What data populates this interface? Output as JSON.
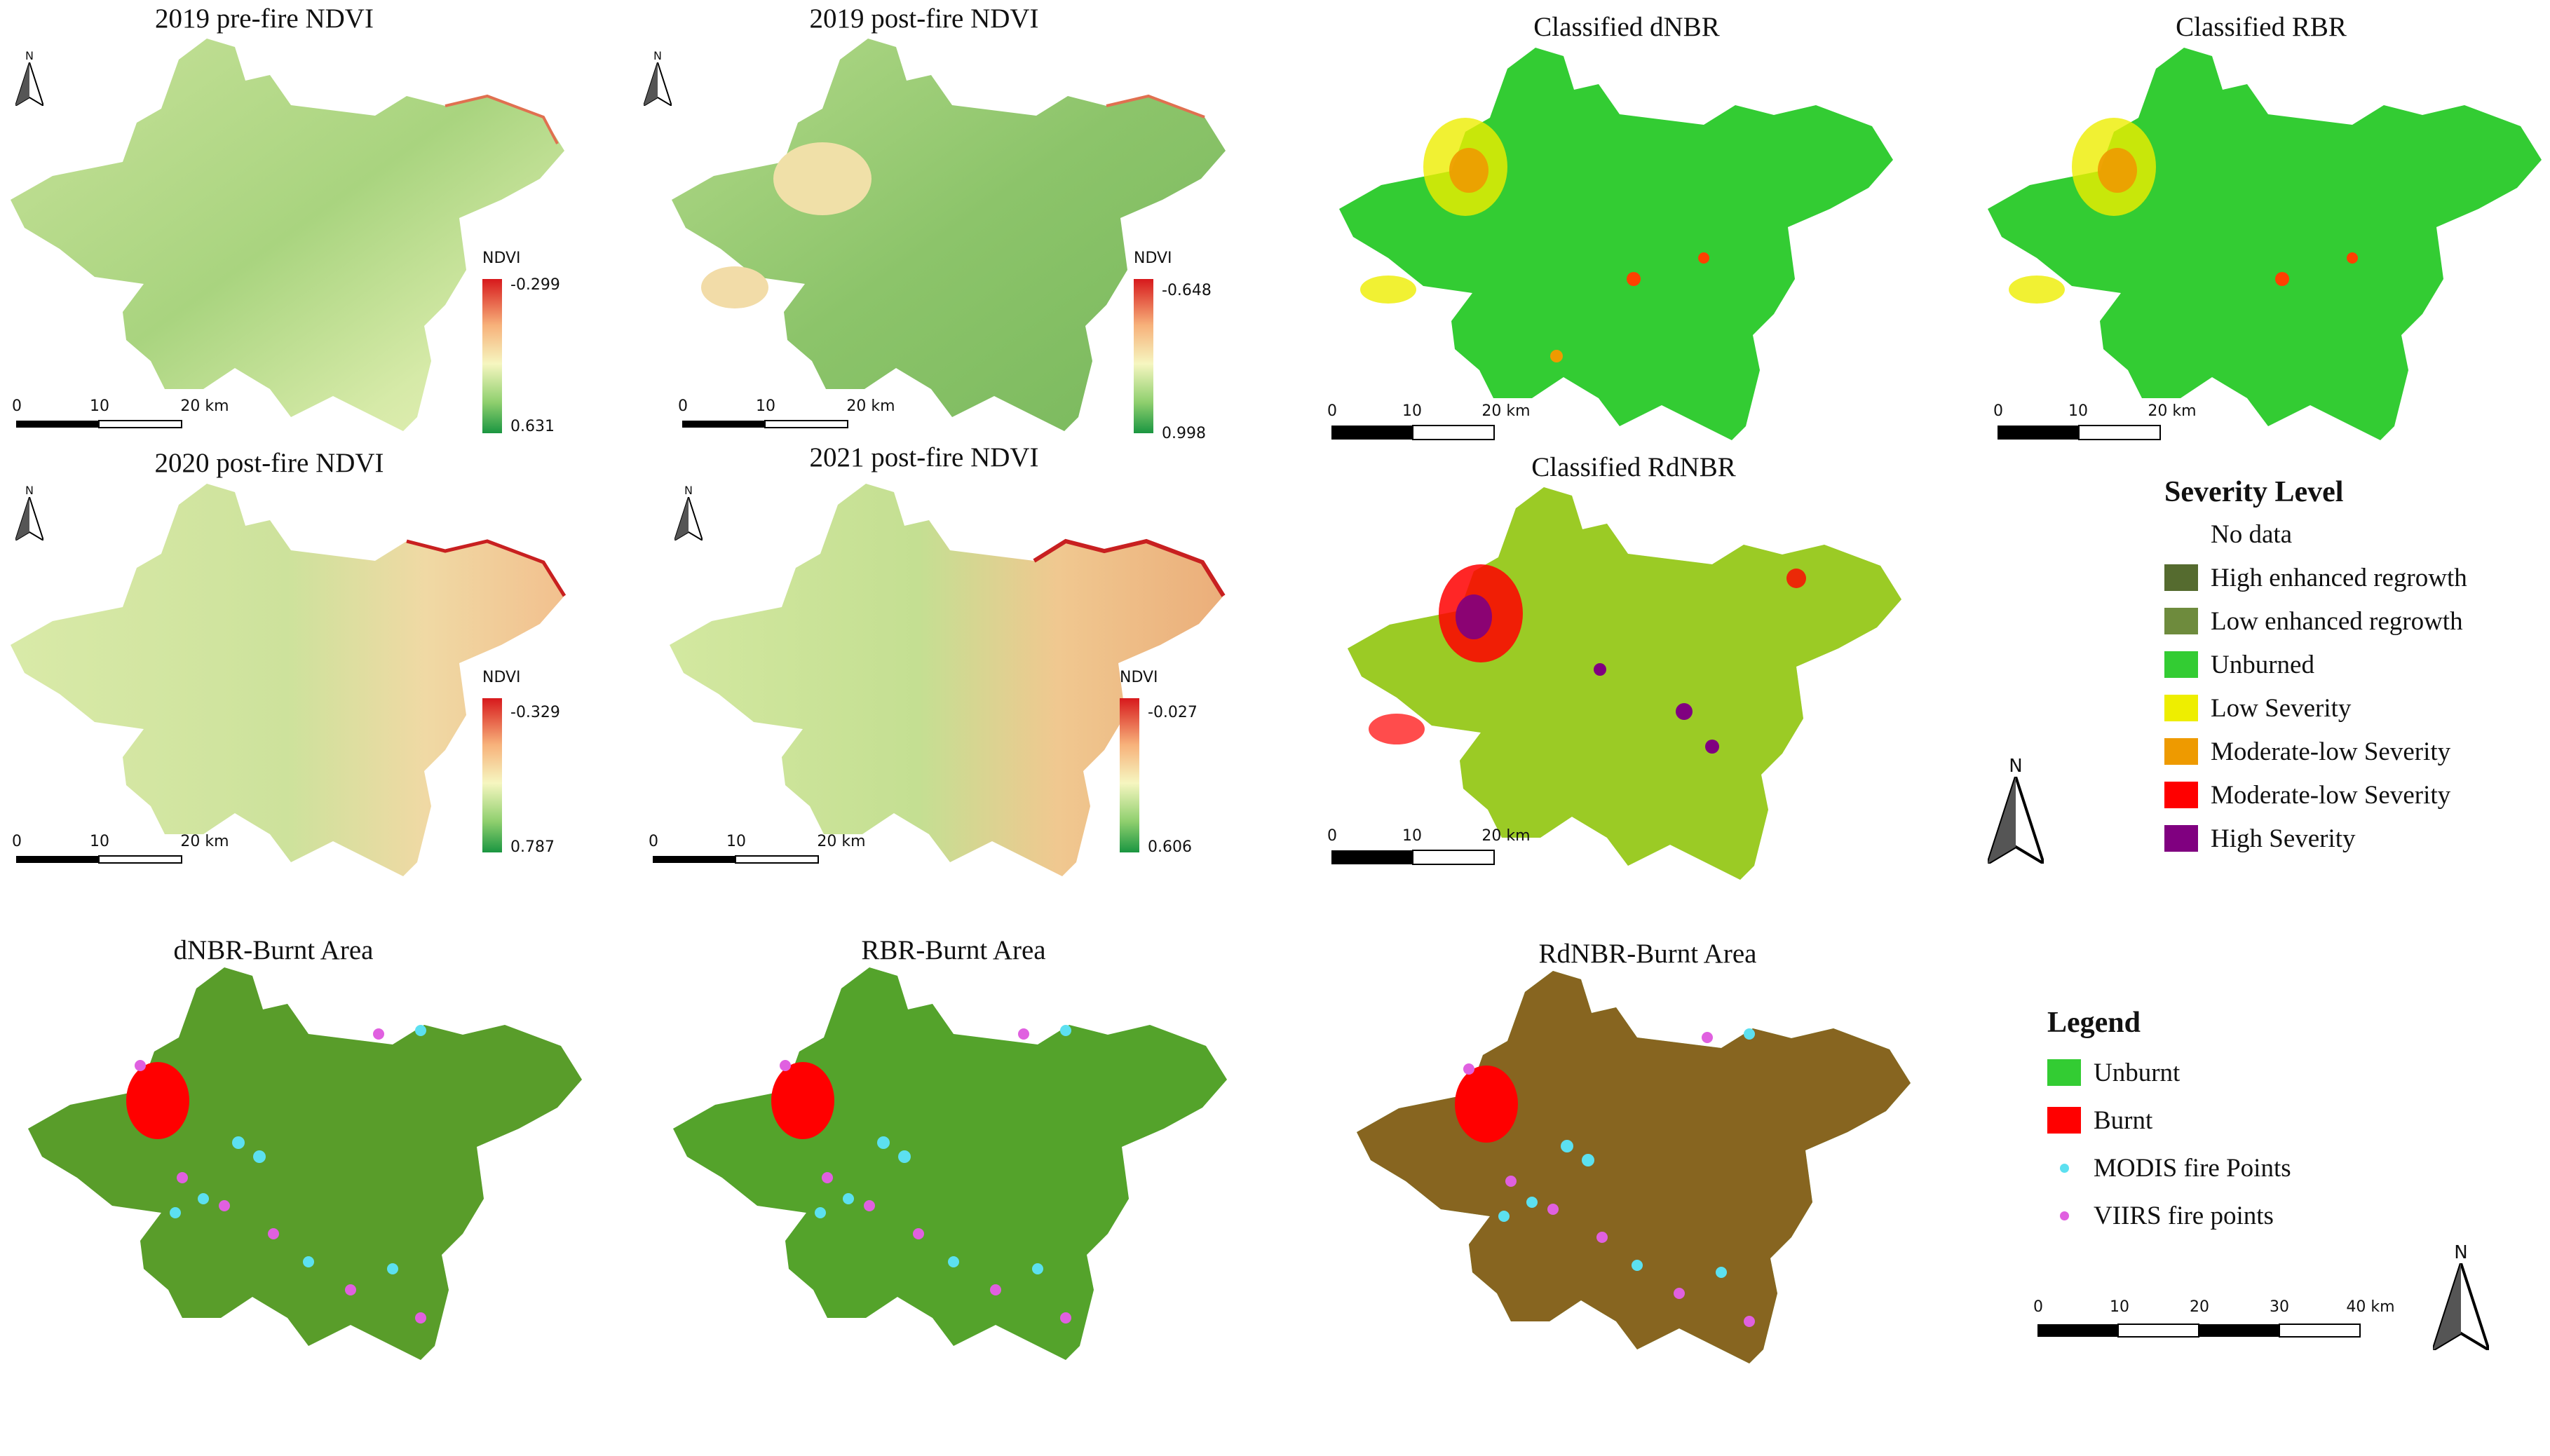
{
  "ndvi_panels": [
    {
      "title": "2019 pre-fire NDVI",
      "legend_title": "NDVI",
      "max": "-0.299",
      "min": "0.631",
      "scale": [
        "0",
        "10",
        "20 km"
      ]
    },
    {
      "title": "2019 post-fire NDVI",
      "legend_title": "NDVI",
      "max": "-0.648",
      "min": "0.998",
      "scale": [
        "0",
        "10",
        "20 km"
      ]
    },
    {
      "title": "2020 post-fire NDVI",
      "legend_title": "NDVI",
      "max": "-0.329",
      "min": "0.787",
      "scale": [
        "0",
        "10",
        "20 km"
      ]
    },
    {
      "title": "2021 post-fire NDVI",
      "legend_title": "NDVI",
      "max": "-0.027",
      "min": "0.606",
      "scale": [
        "0",
        "10",
        "20 km"
      ]
    }
  ],
  "classified_panels": [
    {
      "title": "Classified dNBR",
      "scale": [
        "0",
        "10",
        "20 km"
      ]
    },
    {
      "title": "Classified RBR",
      "scale": [
        "0",
        "10",
        "20 km"
      ]
    },
    {
      "title": "Classified RdNBR",
      "scale": [
        "0",
        "10",
        "20 km"
      ]
    }
  ],
  "burnt_panels": [
    {
      "title": "dNBR-Burnt Area"
    },
    {
      "title": "RBR-Burnt Area"
    },
    {
      "title": "RdNBR-Burnt Area"
    }
  ],
  "north_label": "N",
  "severity_legend": {
    "title": "Severity Level",
    "items": [
      {
        "label": "No data",
        "color": "#ffffff"
      },
      {
        "label": "High enhanced regrowth",
        "color": "#556b2f"
      },
      {
        "label": "Low enhanced regrowth",
        "color": "#6e8b3d"
      },
      {
        "label": "Unburned",
        "color": "#33cc33"
      },
      {
        "label": "Low Severity",
        "color": "#eeee00"
      },
      {
        "label": "Moderate-low Severity",
        "color": "#ee9a00"
      },
      {
        "label": "Moderate-low Severity",
        "color": "#ff0000"
      },
      {
        "label": "High Severity",
        "color": "#800080"
      }
    ]
  },
  "burn_legend": {
    "title": "Legend",
    "items": [
      {
        "label": "Unburnt",
        "color": "#33cc33",
        "kind": "box"
      },
      {
        "label": "Burnt",
        "color": "#ff0000",
        "kind": "box"
      },
      {
        "label": "MODIS fire Points",
        "color": "#5ce0f0",
        "kind": "dot"
      },
      {
        "label": "VIIRS fire points",
        "color": "#e060e0",
        "kind": "dot"
      }
    ]
  },
  "main_scale": [
    "0",
    "10",
    "20",
    "30",
    "40 km"
  ]
}
